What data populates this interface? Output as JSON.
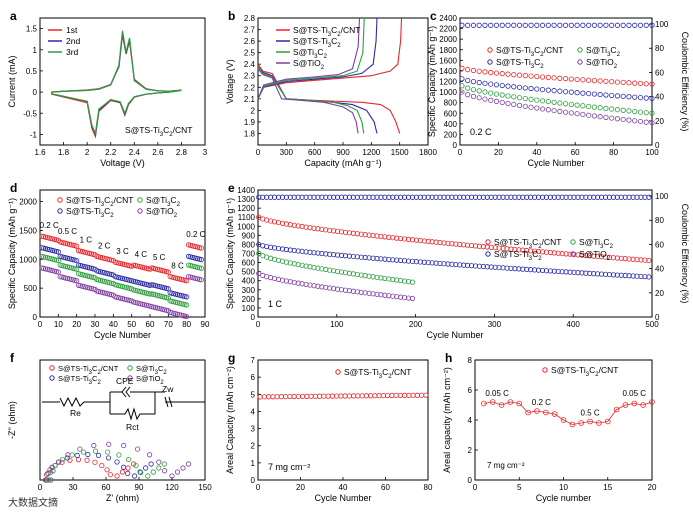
{
  "charts": [
    {
      "id": "a",
      "panel": "a",
      "type": "line",
      "xlabel": "Voltage (V)",
      "ylabel": "Current (mA)",
      "xlim": [
        1.6,
        3.0
      ],
      "ylim": [
        -1.25,
        1.75
      ],
      "xticks": [
        1.6,
        1.8,
        2.0,
        2.2,
        2.4,
        2.6,
        2.8,
        3.0
      ],
      "yticks": [
        -1.0,
        -0.5,
        0.0,
        0.5,
        1.0,
        1.5
      ],
      "annotation": "S@TS-Ti3C2/CNT",
      "legend": [
        "1st",
        "2nd",
        "3rd"
      ],
      "series": [
        {
          "name": "1st",
          "color": "#e8262b",
          "x": [
            1.7,
            2.0,
            2.04,
            2.07,
            2.1,
            2.2,
            2.28,
            2.32,
            2.35,
            2.4,
            2.5,
            2.6,
            2.7,
            2.8,
            2.7,
            2.6,
            2.5,
            2.4,
            2.36,
            2.33,
            2.3,
            2.27,
            2.2,
            2.1,
            2.0,
            1.8,
            1.7
          ],
          "y": [
            -0.05,
            -0.25,
            -0.85,
            -1.05,
            -0.45,
            -0.2,
            -0.25,
            -0.55,
            -0.3,
            -0.12,
            -0.05,
            -0.02,
            0.0,
            0.05,
            0.02,
            0.03,
            0.08,
            0.3,
            1.2,
            0.9,
            1.35,
            0.6,
            0.18,
            0.08,
            0.05,
            0.02,
            0.0
          ]
        },
        {
          "name": "2nd",
          "color": "#2b2ba8",
          "x": [
            1.7,
            2.0,
            2.04,
            2.07,
            2.1,
            2.2,
            2.28,
            2.32,
            2.35,
            2.4,
            2.5,
            2.6,
            2.7,
            2.8,
            2.7,
            2.6,
            2.5,
            2.4,
            2.36,
            2.33,
            2.3,
            2.27,
            2.2,
            2.1,
            2.0,
            1.8,
            1.7
          ],
          "y": [
            -0.04,
            -0.22,
            -0.8,
            -1.0,
            -0.42,
            -0.18,
            -0.24,
            -0.52,
            -0.28,
            -0.11,
            -0.05,
            -0.02,
            0.0,
            0.04,
            0.02,
            0.03,
            0.07,
            0.28,
            1.25,
            0.92,
            1.4,
            0.62,
            0.17,
            0.07,
            0.04,
            0.02,
            0.0
          ]
        },
        {
          "name": "3rd",
          "color": "#2e9e3e",
          "x": [
            1.7,
            2.0,
            2.04,
            2.07,
            2.1,
            2.2,
            2.28,
            2.32,
            2.35,
            2.4,
            2.5,
            2.6,
            2.7,
            2.8,
            2.7,
            2.6,
            2.5,
            2.4,
            2.36,
            2.33,
            2.3,
            2.27,
            2.2,
            2.1,
            2.0,
            1.8,
            1.7
          ],
          "y": [
            -0.04,
            -0.22,
            -0.78,
            -0.98,
            -0.4,
            -0.18,
            -0.23,
            -0.5,
            -0.27,
            -0.11,
            -0.05,
            -0.02,
            0.0,
            0.04,
            0.02,
            0.03,
            0.07,
            0.27,
            1.28,
            0.94,
            1.45,
            0.64,
            0.17,
            0.07,
            0.04,
            0.02,
            0.0
          ]
        }
      ]
    },
    {
      "id": "b",
      "panel": "b",
      "type": "line",
      "xlabel": "Capacity (mAh g⁻¹)",
      "ylabel": "Voltage (V)",
      "xlim": [
        0,
        1800
      ],
      "ylim": [
        1.7,
        2.8
      ],
      "xticks": [
        0,
        300,
        600,
        900,
        1200,
        1500,
        1800
      ],
      "yticks": [
        1.8,
        1.9,
        2.0,
        2.1,
        2.2,
        2.3,
        2.4,
        2.5,
        2.6,
        2.7,
        2.8
      ],
      "legend": [
        "S@TS-Ti3C2/CNT",
        "S@TS-Ti3C2",
        "S@Ti3C2",
        "S@TiO2"
      ],
      "series": [
        {
          "name": "S@TS-Ti3C2/CNT",
          "color": "#e8262b",
          "x": [
            0,
            50,
            150,
            300,
            500,
            800,
            1100,
            1300,
            1400,
            1460,
            1500
          ],
          "y": [
            2.4,
            2.34,
            2.32,
            2.1,
            2.09,
            2.08,
            2.07,
            2.05,
            2.0,
            1.9,
            1.8
          ]
        },
        {
          "name": "S@TS-Ti3C2/CNT",
          "color": "#e8262b",
          "x": [
            0,
            60,
            300,
            600,
            900,
            1200,
            1400,
            1480,
            1510,
            1520
          ],
          "y": [
            2.1,
            2.2,
            2.24,
            2.26,
            2.28,
            2.3,
            2.34,
            2.4,
            2.6,
            2.8
          ]
        },
        {
          "name": "S@TS-Ti3C2",
          "color": "#2b2ba8",
          "x": [
            0,
            50,
            150,
            300,
            500,
            800,
            1000,
            1150,
            1230,
            1260
          ],
          "y": [
            2.38,
            2.33,
            2.3,
            2.1,
            2.09,
            2.07,
            2.05,
            2.0,
            1.9,
            1.8
          ]
        },
        {
          "name": "S@TS-Ti3C2",
          "color": "#2b2ba8",
          "x": [
            0,
            60,
            300,
            600,
            900,
            1100,
            1220,
            1250,
            1260
          ],
          "y": [
            2.1,
            2.2,
            2.25,
            2.27,
            2.29,
            2.32,
            2.4,
            2.6,
            2.8
          ]
        },
        {
          "name": "S@Ti3C2",
          "color": "#2e9e3e",
          "x": [
            0,
            50,
            150,
            300,
            500,
            800,
            950,
            1050,
            1100,
            1120
          ],
          "y": [
            2.38,
            2.32,
            2.29,
            2.1,
            2.09,
            2.07,
            2.04,
            2.0,
            1.9,
            1.8
          ]
        },
        {
          "name": "S@Ti3C2",
          "color": "#2e9e3e",
          "x": [
            0,
            60,
            300,
            600,
            900,
            1050,
            1110,
            1125
          ],
          "y": [
            2.1,
            2.21,
            2.26,
            2.28,
            2.3,
            2.34,
            2.5,
            2.8
          ]
        },
        {
          "name": "S@TiO2",
          "color": "#7f3fa3",
          "x": [
            0,
            50,
            150,
            250,
            400,
            700,
            900,
            1000,
            1040,
            1060
          ],
          "y": [
            2.36,
            2.31,
            2.28,
            2.1,
            2.09,
            2.07,
            2.03,
            1.98,
            1.9,
            1.8
          ]
        },
        {
          "name": "S@TiO2",
          "color": "#7f3fa3",
          "x": [
            0,
            60,
            300,
            600,
            850,
            1000,
            1060,
            1075
          ],
          "y": [
            2.1,
            2.22,
            2.27,
            2.29,
            2.31,
            2.36,
            2.55,
            2.8
          ]
        }
      ]
    },
    {
      "id": "c",
      "panel": "c",
      "type": "scatter",
      "xlabel": "Cycle Number",
      "ylabel": "Specific Capacity (mAh g⁻¹)",
      "y2label": "Coulombic Efficiency (%)",
      "xlim": [
        0,
        100
      ],
      "ylim": [
        0,
        2400
      ],
      "y2lim": [
        0,
        105
      ],
      "xticks": [
        0,
        20,
        40,
        60,
        80,
        100
      ],
      "yticks": [
        0,
        200,
        400,
        600,
        800,
        1000,
        1200,
        1400,
        1600,
        1800,
        2000,
        2200,
        2400
      ],
      "y2ticks": [
        0,
        20,
        40,
        60,
        80,
        100
      ],
      "annotation": "0.2 C",
      "legend": [
        "S@TS-Ti3C2/CNT",
        "S@Ti3C2",
        "S@TS-Ti3C2",
        "S@TiO2"
      ],
      "series": [
        {
          "name": "S@TS-Ti3C2/CNT",
          "color": "#e8262b",
          "start": 1450,
          "end": 1150,
          "decay": "lin"
        },
        {
          "name": "S@TS-Ti3C2",
          "color": "#2b2ba8",
          "start": 1250,
          "end": 880,
          "decay": "lin"
        },
        {
          "name": "S@Ti3C2",
          "color": "#2e9e3e",
          "start": 1120,
          "end": 600,
          "decay": "lin"
        },
        {
          "name": "S@TiO2",
          "color": "#7f3fa3",
          "start": 1000,
          "end": 420,
          "decay": "lin"
        }
      ],
      "ce": {
        "start": 96,
        "value": 99,
        "color": "#2b2ba8"
      }
    },
    {
      "id": "d",
      "panel": "d",
      "type": "scatter",
      "xlabel": "Cycle Number",
      "ylabel": "Specific Capacity (mAh g⁻¹)",
      "xlim": [
        0,
        90
      ],
      "ylim": [
        0,
        2200
      ],
      "xticks": [
        0,
        10,
        20,
        30,
        40,
        50,
        60,
        70,
        80,
        90
      ],
      "yticks": [
        0,
        500,
        1000,
        1500,
        2000
      ],
      "legend": [
        "S@TS-Ti3C2/CNT",
        "S@Ti3C2",
        "S@TS-Ti3C2",
        "S@TiO2"
      ],
      "rate_labels": [
        "0.2 C",
        "0.5 C",
        "1 C",
        "2 C",
        "3 C",
        "4 C",
        "5 C",
        "8 C",
        "0.2 C"
      ],
      "series": [
        {
          "name": "S@TS-Ti3C2/CNT",
          "color": "#e8262b",
          "levels": [
            1400,
            1300,
            1150,
            1050,
            950,
            900,
            850,
            700,
            1250
          ]
        },
        {
          "name": "S@TS-Ti3C2",
          "color": "#2b2ba8",
          "levels": [
            1200,
            1050,
            900,
            800,
            700,
            620,
            560,
            420,
            1050
          ]
        },
        {
          "name": "S@Ti3C2",
          "color": "#2e9e3e",
          "levels": [
            1050,
            900,
            750,
            650,
            560,
            470,
            400,
            280,
            900
          ]
        },
        {
          "name": "S@TiO2",
          "color": "#7f3fa3",
          "levels": [
            850,
            700,
            550,
            450,
            350,
            260,
            180,
            80,
            700
          ]
        }
      ]
    },
    {
      "id": "e",
      "panel": "e",
      "type": "scatter",
      "xlabel": "Cycle Number",
      "ylabel": "Specific Capacity (mAh g⁻¹)",
      "y2label": "Coulombic Efficiency (%)",
      "xlim": [
        0,
        500
      ],
      "ylim": [
        0,
        1400
      ],
      "y2lim": [
        0,
        105
      ],
      "xticks": [
        0,
        100,
        200,
        300,
        400,
        500
      ],
      "yticks": [
        0,
        100,
        200,
        300,
        400,
        500,
        600,
        700,
        800,
        900,
        1000,
        1100,
        1200,
        1300,
        1400
      ],
      "y2ticks": [
        0,
        20,
        40,
        60,
        80,
        100
      ],
      "annotation": "1 C",
      "legend": [
        "S@TS-Ti3C2/CNT",
        "S@Ti3C2",
        "S@TS-Ti3C2",
        "S@TiO2"
      ],
      "series": [
        {
          "name": "S@TS-Ti3C2/CNT",
          "color": "#e8262b",
          "n": 500,
          "start": 1100,
          "end": 620
        },
        {
          "name": "S@TS-Ti3C2",
          "color": "#2b2ba8",
          "n": 500,
          "start": 800,
          "end": 440
        },
        {
          "name": "S@Ti3C2",
          "color": "#2e9e3e",
          "n": 200,
          "start": 700,
          "end": 380
        },
        {
          "name": "S@TiO2",
          "color": "#7f3fa3",
          "n": 200,
          "start": 480,
          "end": 200
        }
      ],
      "ce": {
        "value": 99,
        "color": "#2b2ba8"
      }
    },
    {
      "id": "f",
      "panel": "f",
      "type": "scatter",
      "xlabel": "Z' (ohm)",
      "ylabel": "-Z\" (ohm)",
      "xlim": [
        0,
        150
      ],
      "ylim": [
        0,
        150
      ],
      "xticks": [
        0,
        30,
        60,
        90,
        120,
        150
      ],
      "yticks": [],
      "legend": [
        "S@TS-Ti3C2/CNT",
        "S@Ti3C2",
        "S@TS-Ti3C2",
        "S@TiO2"
      ],
      "circuit": {
        "re": "Re",
        "cpe": "CPE",
        "rct": "Rct",
        "zw": "Zw"
      },
      "series": [
        {
          "name": "S@TS-Ti3C2/CNT",
          "color": "#e8262b",
          "x0": 5,
          "d": 60
        },
        {
          "name": "S@TS-Ti3C2",
          "color": "#2b2ba8",
          "x0": 6,
          "d": 75
        },
        {
          "name": "S@Ti3C2",
          "color": "#2e9e3e",
          "x0": 8,
          "d": 85
        },
        {
          "name": "S@TiO2",
          "color": "#7f3fa3",
          "x0": 10,
          "d": 105
        }
      ]
    },
    {
      "id": "g",
      "panel": "g",
      "type": "scatter",
      "xlabel": "Cycle Number",
      "ylabel": "Areal Capacity (mAh cm⁻²)",
      "xlim": [
        0,
        80
      ],
      "ylim": [
        0,
        7
      ],
      "xticks": [
        0,
        20,
        40,
        60,
        80
      ],
      "yticks": [
        0,
        1,
        2,
        3,
        4,
        5,
        6,
        7
      ],
      "annotation": "7 mg cm⁻²",
      "legend": [
        "S@TS-Ti3C2/CNT"
      ],
      "series": [
        {
          "name": "S@TS-Ti3C2/CNT",
          "color": "#e8262b",
          "n": 80,
          "start": 4.85,
          "end": 4.95
        }
      ]
    },
    {
      "id": "h",
      "panel": "h",
      "type": "scatter",
      "xlabel": "Cycle number",
      "ylabel": "Areal capacity (mAh cm⁻²)",
      "xlim": [
        0,
        20
      ],
      "ylim": [
        0,
        8
      ],
      "xticks": [
        0,
        5,
        10,
        15,
        20
      ],
      "yticks": [
        0,
        2,
        4,
        6,
        8
      ],
      "annotation": "7 mg cm⁻²",
      "legend": [
        "S@TS-Ti3C2/CNT"
      ],
      "rate_labels": [
        "0.05 C",
        "0.2 C",
        "0.5 C",
        "0.05 C"
      ],
      "series": [
        {
          "name": "S@TS-Ti3C2/CNT",
          "color": "#e8262b",
          "x": [
            1,
            2,
            3,
            4,
            5,
            6,
            7,
            8,
            9,
            10,
            11,
            12,
            13,
            14,
            15,
            16,
            17,
            18,
            19,
            20
          ],
          "y": [
            5.1,
            5.2,
            5.0,
            5.2,
            5.1,
            4.5,
            4.6,
            4.5,
            4.4,
            4.0,
            3.7,
            3.8,
            3.9,
            3.8,
            3.9,
            4.7,
            5.0,
            5.1,
            5.0,
            5.2
          ]
        }
      ]
    }
  ],
  "watermark": "大数据文摘"
}
